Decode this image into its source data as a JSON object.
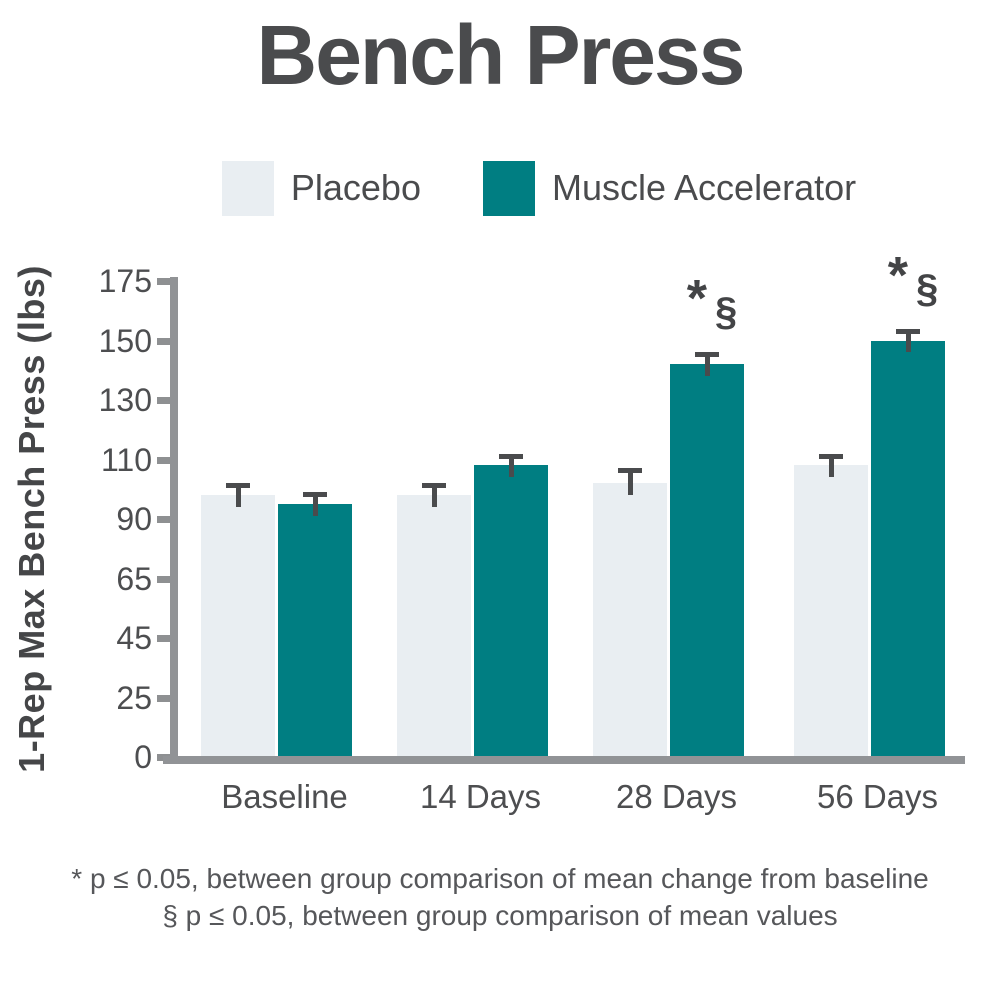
{
  "title": "Bench Press",
  "legend": [
    {
      "label": "Placebo",
      "color": "#e9eef2"
    },
    {
      "label": "Muscle Accelerator",
      "color": "#007e82"
    }
  ],
  "chart_data": {
    "type": "bar",
    "title": "Bench Press",
    "ylabel": "1-Rep Max Bench Press (lbs)",
    "xlabel": "",
    "categories": [
      "Baseline",
      "14 Days",
      "28 Days",
      "56 Days"
    ],
    "series": [
      {
        "name": "Placebo",
        "color": "#e9eef2",
        "values": [
          98,
          98,
          102,
          108
        ],
        "errors": [
          4,
          4,
          5,
          4
        ]
      },
      {
        "name": "Muscle Accelerator",
        "color": "#007e82",
        "values": [
          95,
          108,
          142,
          150
        ],
        "errors": [
          4,
          4,
          4,
          5
        ]
      }
    ],
    "annotations": [
      {
        "category": "28 Days",
        "series": "Muscle Accelerator",
        "text": "* §"
      },
      {
        "category": "56 Days",
        "series": "Muscle Accelerator",
        "text": "* §"
      }
    ],
    "y_ticks": [
      0,
      25,
      45,
      65,
      90,
      110,
      130,
      150,
      175
    ],
    "y_scale_note": "ticks evenly spaced (non-linear value axis)",
    "ylim": [
      0,
      175
    ],
    "grid": false,
    "legend_position": "top",
    "error_bar_color": "#4a4b4d",
    "axis_color": "#919396"
  },
  "footnotes": [
    "* p ≤ 0.05, between group comparison of mean change from baseline",
    "§ p ≤ 0.05, between group comparison of mean values"
  ]
}
